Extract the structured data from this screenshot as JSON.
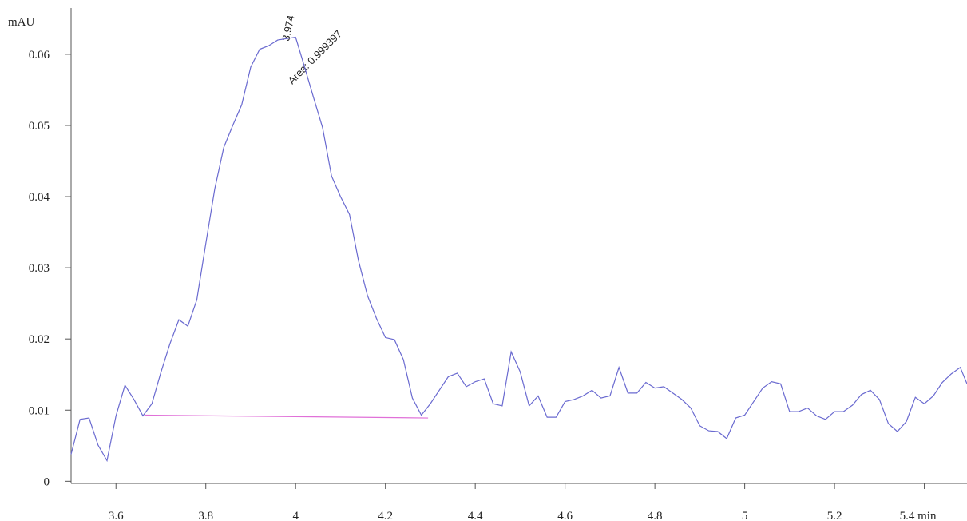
{
  "chart_data": {
    "type": "line",
    "y_label": "mAU",
    "annotations": [
      "3.974",
      "Area: 0.999397"
    ],
    "xlim": [
      3.5,
      5.495
    ],
    "xticks": [
      3.6,
      3.8,
      4,
      4.2,
      4.4,
      4.6,
      4.8,
      5,
      5.2,
      {
        "value": 5.4,
        "label": "5.4 min"
      }
    ],
    "ylim": [
      -0.0003,
      0.0665
    ],
    "yticks": [
      0,
      0.01,
      0.02,
      0.03,
      0.04,
      0.05,
      0.06
    ],
    "series": [
      {
        "color": "#6a6ad0",
        "x": [
          3.5,
          3.52,
          3.54,
          3.56,
          3.58,
          3.6,
          3.62,
          3.64,
          3.66,
          3.68,
          3.7,
          3.72,
          3.74,
          3.76,
          3.78,
          3.8,
          3.82,
          3.84,
          3.86,
          3.88,
          3.9,
          3.92,
          3.94,
          3.96,
          3.98,
          4.0,
          4.02,
          4.04,
          4.06,
          4.08,
          4.1,
          4.12,
          4.14,
          4.16,
          4.18,
          4.2,
          4.22,
          4.24,
          4.26,
          4.28,
          4.3,
          4.32,
          4.34,
          4.36,
          4.38,
          4.4,
          4.42,
          4.44,
          4.46,
          4.48,
          4.5,
          4.52,
          4.54,
          4.56,
          4.58,
          4.6,
          4.62,
          4.64,
          4.66,
          4.68,
          4.7,
          4.72,
          4.74,
          4.76,
          4.78,
          4.8,
          4.82,
          4.84,
          4.86,
          4.88,
          4.9,
          4.92,
          4.94,
          4.96,
          4.98,
          5.0,
          5.02,
          5.04,
          5.06,
          5.08,
          5.1,
          5.12,
          5.14,
          5.16,
          5.18,
          5.2,
          5.22,
          5.24,
          5.26,
          5.28,
          5.3,
          5.32,
          5.34,
          5.36,
          5.38,
          5.4,
          5.42,
          5.44,
          5.46,
          5.48,
          5.495
        ],
        "values": [
          0.0038,
          0.0087,
          0.0089,
          0.0051,
          0.0029,
          0.0092,
          0.0135,
          0.0115,
          0.0092,
          0.0109,
          0.0153,
          0.0193,
          0.0227,
          0.0218,
          0.0255,
          0.0334,
          0.0411,
          0.0469,
          0.05,
          0.0529,
          0.0582,
          0.0607,
          0.0612,
          0.062,
          0.0622,
          0.0624,
          0.0582,
          0.0539,
          0.0497,
          0.0429,
          0.04,
          0.0375,
          0.031,
          0.0261,
          0.0229,
          0.0202,
          0.0199,
          0.0171,
          0.0117,
          0.0093,
          0.0109,
          0.0128,
          0.0147,
          0.0152,
          0.0133,
          0.014,
          0.0144,
          0.0109,
          0.0106,
          0.0182,
          0.0154,
          0.0106,
          0.012,
          0.009,
          0.009,
          0.0112,
          0.0115,
          0.012,
          0.0128,
          0.0117,
          0.012,
          0.016,
          0.0124,
          0.0124,
          0.0139,
          0.0131,
          0.0133,
          0.0124,
          0.0115,
          0.0103,
          0.0078,
          0.0071,
          0.007,
          0.006,
          0.0089,
          0.0093,
          0.0112,
          0.0131,
          0.014,
          0.0137,
          0.0098,
          0.0098,
          0.0103,
          0.0092,
          0.0087,
          0.0098,
          0.0098,
          0.0107,
          0.0122,
          0.0128,
          0.0115,
          0.0081,
          0.007,
          0.0084,
          0.0118,
          0.0109,
          0.012,
          0.0139,
          0.0151,
          0.016,
          0.0137
        ]
      },
      {
        "color": "#e070d8",
        "x": [
          3.665,
          4.295
        ],
        "values": [
          0.0093,
          0.0089
        ]
      }
    ]
  }
}
